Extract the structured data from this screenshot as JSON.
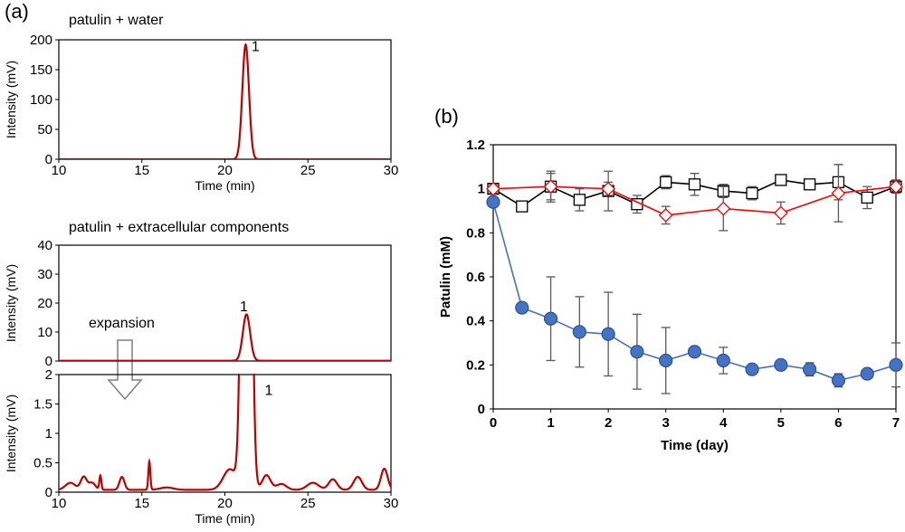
{
  "figure": {
    "panel_a_label": "(a)",
    "panel_b_label": "(b)",
    "expansion_label": "expansion"
  },
  "colors": {
    "trace": "#c00000",
    "treated_series": "#4472c4",
    "marker_edge_blue": "#2f528f",
    "red_series": "#ff0000",
    "black_series": "#000000",
    "error_bar": "#595959"
  },
  "chart_data": [
    {
      "id": "a1",
      "type": "line",
      "title": "patulin + water",
      "xlabel": "Time (min)",
      "ylabel": "Intensity (mV)",
      "xlim": [
        10,
        30
      ],
      "ylim": [
        0,
        200
      ],
      "xticks": [
        10,
        15,
        20,
        25,
        30
      ],
      "yticks": [
        0,
        50,
        100,
        150,
        200
      ],
      "peaks": [
        {
          "center": 21.25,
          "height": 192,
          "width": 0.2
        }
      ],
      "baseline": 0,
      "annotations": [
        {
          "text": "1",
          "x": 21.6,
          "y": 190
        }
      ]
    },
    {
      "id": "a2",
      "type": "line",
      "title": "patulin + extracellular components",
      "xlabel": "",
      "ylabel": "Intensity (mV)",
      "xlim": [
        10,
        30
      ],
      "ylim": [
        0,
        40
      ],
      "xticks": [],
      "yticks": [
        0,
        10,
        20,
        30,
        40
      ],
      "peaks": [
        {
          "center": 21.3,
          "height": 16,
          "width": 0.22
        }
      ],
      "baseline": 0.1,
      "annotations": [
        {
          "text": "1",
          "x": 20.9,
          "y": 19
        }
      ]
    },
    {
      "id": "a3",
      "type": "line",
      "title": "",
      "xlabel": "Time (min)",
      "ylabel": "Intensity (mV)",
      "xlim": [
        10,
        30
      ],
      "ylim": [
        0,
        2
      ],
      "xticks": [
        10,
        15,
        20,
        25,
        30
      ],
      "yticks": [
        0,
        0.5,
        1,
        1.5,
        2
      ],
      "peaks": [
        {
          "center": 10.7,
          "height": 0.12,
          "width": 0.3
        },
        {
          "center": 11.5,
          "height": 0.22,
          "width": 0.18
        },
        {
          "center": 12.0,
          "height": 0.12,
          "width": 0.2
        },
        {
          "center": 12.5,
          "height": 0.24,
          "width": 0.06
        },
        {
          "center": 13.8,
          "height": 0.22,
          "width": 0.15
        },
        {
          "center": 15.45,
          "height": 0.48,
          "width": 0.06
        },
        {
          "center": 16.5,
          "height": 0.04,
          "width": 0.4
        },
        {
          "center": 20.3,
          "height": 0.35,
          "width": 0.4
        },
        {
          "center": 21.3,
          "height": 16,
          "width": 0.22
        },
        {
          "center": 22.5,
          "height": 0.25,
          "width": 0.25
        },
        {
          "center": 23.4,
          "height": 0.1,
          "width": 0.3
        },
        {
          "center": 25.3,
          "height": 0.12,
          "width": 0.35
        },
        {
          "center": 26.5,
          "height": 0.18,
          "width": 0.25
        },
        {
          "center": 28.0,
          "height": 0.22,
          "width": 0.25
        },
        {
          "center": 29.6,
          "height": 0.36,
          "width": 0.2
        }
      ],
      "baseline": 0.04,
      "annotations": [
        {
          "text": "1",
          "x": 22.4,
          "y": 1.75
        }
      ]
    },
    {
      "id": "b",
      "type": "scatter",
      "title": "",
      "xlabel": "Time (day)",
      "ylabel": "Patulin (mM)",
      "xlim": [
        0,
        7
      ],
      "ylim": [
        0,
        1.2
      ],
      "xticks": [
        0,
        1,
        2,
        3,
        4,
        5,
        6,
        7
      ],
      "yticks": [
        0,
        0.2,
        0.4,
        0.6,
        0.8,
        1,
        1.2
      ],
      "series": [
        {
          "marker": "square-open",
          "x": [
            0,
            0.5,
            1,
            1.5,
            2,
            2.5,
            3,
            3.5,
            4,
            4.5,
            5,
            5.5,
            6,
            6.5,
            7
          ],
          "y": [
            1.0,
            0.92,
            1.01,
            0.95,
            0.99,
            0.93,
            1.03,
            1.02,
            0.99,
            0.98,
            1.04,
            1.02,
            1.03,
            0.96,
            1.01
          ],
          "err": [
            0.02,
            0.02,
            0.07,
            0.05,
            0.09,
            0.04,
            0.03,
            0.05,
            0.03,
            0.03,
            0.01,
            0.01,
            0.08,
            0.05,
            0.03
          ]
        },
        {
          "marker": "diamond-open",
          "x": [
            0,
            1,
            2,
            3,
            4,
            5,
            6,
            7
          ],
          "y": [
            1.0,
            1.01,
            1.0,
            0.88,
            0.91,
            0.89,
            0.98,
            1.01
          ],
          "err": [
            0.02,
            0.06,
            0.03,
            0.04,
            0.1,
            0.05,
            0.13,
            0.02
          ]
        },
        {
          "marker": "circle-filled",
          "x": [
            0,
            0.5,
            1,
            1.5,
            2,
            2.5,
            3,
            3.5,
            4,
            4.5,
            5,
            5.5,
            6,
            6.5,
            7
          ],
          "y": [
            0.94,
            0.46,
            0.41,
            0.35,
            0.34,
            0.26,
            0.22,
            0.26,
            0.22,
            0.18,
            0.2,
            0.18,
            0.13,
            0.16,
            0.2
          ],
          "err": [
            0.02,
            0.01,
            0.19,
            0.16,
            0.19,
            0.17,
            0.15,
            0.01,
            0.06,
            0.01,
            0.01,
            0.03,
            0.03,
            0.01,
            0.1
          ]
        }
      ]
    }
  ]
}
